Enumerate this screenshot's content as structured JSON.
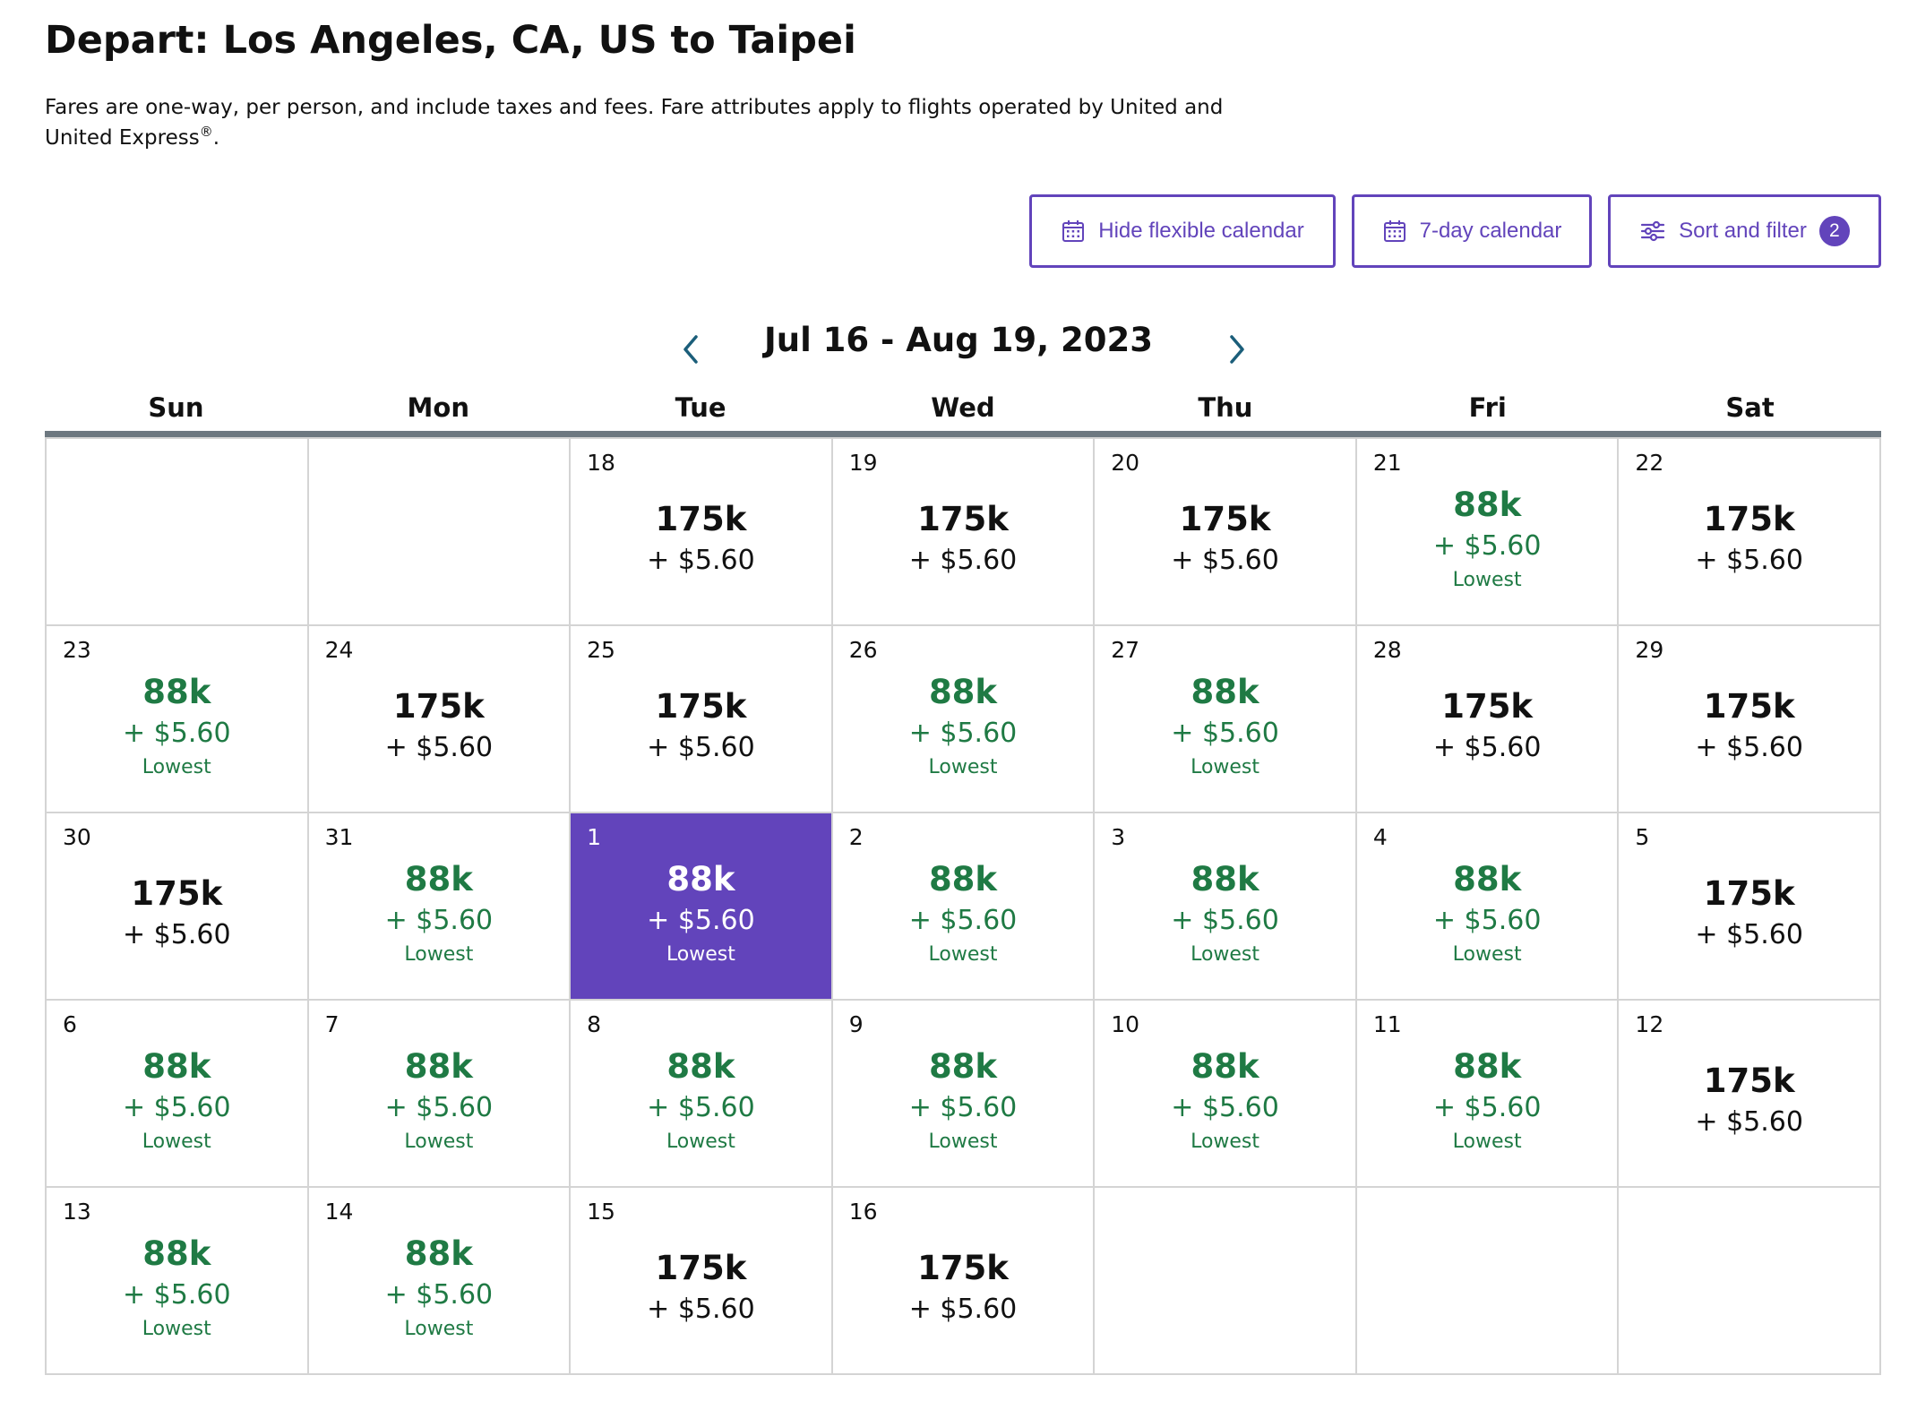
{
  "header": {
    "title": "Depart: Los Angeles, CA, US to Taipei",
    "subtitle_main": "Fares are one-way, per person, and include taxes and fees. Fare attributes apply to flights operated by United and United Express",
    "subtitle_reg": "®",
    "subtitle_end": "."
  },
  "toolbar": {
    "hide_calendar_label": "Hide flexible calendar",
    "seven_day_label": "7-day calendar",
    "sort_filter_label": "Sort and filter",
    "sort_filter_count": "2"
  },
  "calendar": {
    "range": "Jul 16 - Aug 19, 2023",
    "weekdays": [
      "Sun",
      "Mon",
      "Tue",
      "Wed",
      "Thu",
      "Fri",
      "Sat"
    ],
    "cells": [
      {
        "day": "",
        "miles": "",
        "tax": "",
        "tag": "",
        "kind": "empty"
      },
      {
        "day": "",
        "miles": "",
        "tax": "",
        "tag": "",
        "kind": "empty"
      },
      {
        "day": "18",
        "miles": "175k",
        "tax": "+ $5.60",
        "tag": "",
        "kind": "high"
      },
      {
        "day": "19",
        "miles": "175k",
        "tax": "+ $5.60",
        "tag": "",
        "kind": "high"
      },
      {
        "day": "20",
        "miles": "175k",
        "tax": "+ $5.60",
        "tag": "",
        "kind": "high"
      },
      {
        "day": "21",
        "miles": "88k",
        "tax": "+ $5.60",
        "tag": "Lowest",
        "kind": "low"
      },
      {
        "day": "22",
        "miles": "175k",
        "tax": "+ $5.60",
        "tag": "",
        "kind": "high"
      },
      {
        "day": "23",
        "miles": "88k",
        "tax": "+ $5.60",
        "tag": "Lowest",
        "kind": "low"
      },
      {
        "day": "24",
        "miles": "175k",
        "tax": "+ $5.60",
        "tag": "",
        "kind": "high"
      },
      {
        "day": "25",
        "miles": "175k",
        "tax": "+ $5.60",
        "tag": "",
        "kind": "high"
      },
      {
        "day": "26",
        "miles": "88k",
        "tax": "+ $5.60",
        "tag": "Lowest",
        "kind": "low"
      },
      {
        "day": "27",
        "miles": "88k",
        "tax": "+ $5.60",
        "tag": "Lowest",
        "kind": "low"
      },
      {
        "day": "28",
        "miles": "175k",
        "tax": "+ $5.60",
        "tag": "",
        "kind": "high"
      },
      {
        "day": "29",
        "miles": "175k",
        "tax": "+ $5.60",
        "tag": "",
        "kind": "high"
      },
      {
        "day": "30",
        "miles": "175k",
        "tax": "+ $5.60",
        "tag": "",
        "kind": "high"
      },
      {
        "day": "31",
        "miles": "88k",
        "tax": "+ $5.60",
        "tag": "Lowest",
        "kind": "low"
      },
      {
        "day": "1",
        "miles": "88k",
        "tax": "+ $5.60",
        "tag": "Lowest",
        "kind": "selected"
      },
      {
        "day": "2",
        "miles": "88k",
        "tax": "+ $5.60",
        "tag": "Lowest",
        "kind": "low"
      },
      {
        "day": "3",
        "miles": "88k",
        "tax": "+ $5.60",
        "tag": "Lowest",
        "kind": "low"
      },
      {
        "day": "4",
        "miles": "88k",
        "tax": "+ $5.60",
        "tag": "Lowest",
        "kind": "low"
      },
      {
        "day": "5",
        "miles": "175k",
        "tax": "+ $5.60",
        "tag": "",
        "kind": "high"
      },
      {
        "day": "6",
        "miles": "88k",
        "tax": "+ $5.60",
        "tag": "Lowest",
        "kind": "low"
      },
      {
        "day": "7",
        "miles": "88k",
        "tax": "+ $5.60",
        "tag": "Lowest",
        "kind": "low"
      },
      {
        "day": "8",
        "miles": "88k",
        "tax": "+ $5.60",
        "tag": "Lowest",
        "kind": "low"
      },
      {
        "day": "9",
        "miles": "88k",
        "tax": "+ $5.60",
        "tag": "Lowest",
        "kind": "low"
      },
      {
        "day": "10",
        "miles": "88k",
        "tax": "+ $5.60",
        "tag": "Lowest",
        "kind": "low"
      },
      {
        "day": "11",
        "miles": "88k",
        "tax": "+ $5.60",
        "tag": "Lowest",
        "kind": "low"
      },
      {
        "day": "12",
        "miles": "175k",
        "tax": "+ $5.60",
        "tag": "",
        "kind": "high"
      },
      {
        "day": "13",
        "miles": "88k",
        "tax": "+ $5.60",
        "tag": "Lowest",
        "kind": "low"
      },
      {
        "day": "14",
        "miles": "88k",
        "tax": "+ $5.60",
        "tag": "Lowest",
        "kind": "low"
      },
      {
        "day": "15",
        "miles": "175k",
        "tax": "+ $5.60",
        "tag": "",
        "kind": "high"
      },
      {
        "day": "16",
        "miles": "175k",
        "tax": "+ $5.60",
        "tag": "",
        "kind": "high"
      },
      {
        "day": "",
        "miles": "",
        "tax": "",
        "tag": "",
        "kind": "empty"
      },
      {
        "day": "",
        "miles": "",
        "tax": "",
        "tag": "",
        "kind": "empty"
      },
      {
        "day": "",
        "miles": "",
        "tax": "",
        "tag": "",
        "kind": "empty"
      }
    ]
  },
  "colors": {
    "accent": "#6244bb",
    "lowest_green": "#1f7a44",
    "nav_arrow": "#1b5e7a",
    "rule": "#6d7880"
  },
  "icons": {
    "hide_calendar": "calendar-icon",
    "seven_day": "calendar-icon",
    "sort_filter": "sliders-icon",
    "prev": "chevron-left-icon",
    "next": "chevron-right-icon"
  }
}
